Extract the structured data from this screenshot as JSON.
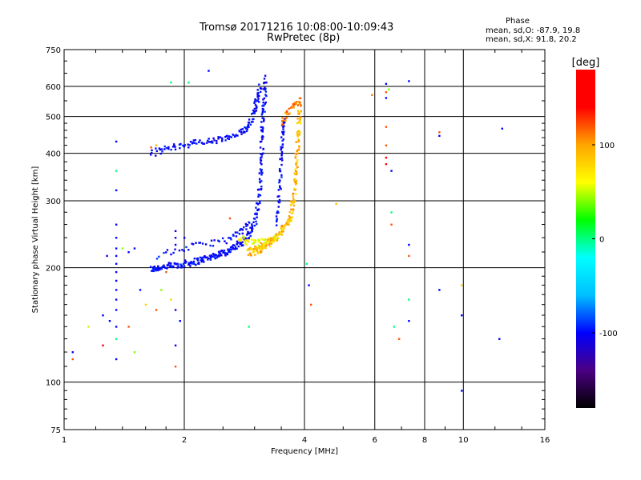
{
  "chart_data": {
    "type": "scatter",
    "title": "Tromsø 20171216 10:08:00-10:09:43",
    "subtitle": "RwPretec (8p)",
    "xlabel": "Frequency [MHz]",
    "ylabel": "Stationary phase Virtual Height [km]",
    "x_scale": "log",
    "y_scale": "log",
    "xlim": [
      1,
      16
    ],
    "ylim": [
      75,
      750
    ],
    "xticks": [
      1,
      2,
      4,
      6,
      8,
      10,
      16
    ],
    "yticks": [
      75,
      100,
      200,
      300,
      400,
      500,
      600,
      750
    ],
    "grid": true,
    "phase_info": {
      "heading": "Phase",
      "line_o": "mean, sd,O: -87.9, 19.8",
      "line_x": "mean, sd,X:  91.8, 20.2"
    },
    "colorbar": {
      "label": "[deg]",
      "range": [
        -180,
        180
      ],
      "ticks": [
        100,
        0,
        -100
      ],
      "tick_labels": [
        "100",
        "0",
        "-100"
      ],
      "colors": [
        "#000000",
        "#4b0082",
        "#0000ff",
        "#00bfff",
        "#00ffff",
        "#00ff00",
        "#ffff00",
        "#ffa500",
        "#ff0000",
        "#ff0000"
      ]
    },
    "o_trace_lower": [
      {
        "f": 1.65,
        "h": 198,
        "p": -100
      },
      {
        "f": 1.7,
        "h": 200,
        "p": -100
      },
      {
        "f": 1.8,
        "h": 202,
        "p": -100
      },
      {
        "f": 1.9,
        "h": 203,
        "p": -100
      },
      {
        "f": 2.0,
        "h": 205,
        "p": -100
      },
      {
        "f": 2.1,
        "h": 207,
        "p": -100
      },
      {
        "f": 2.2,
        "h": 210,
        "p": -100
      },
      {
        "f": 2.3,
        "h": 213,
        "p": -100
      },
      {
        "f": 2.4,
        "h": 216,
        "p": -100
      },
      {
        "f": 2.5,
        "h": 219,
        "p": -100
      },
      {
        "f": 2.6,
        "h": 223,
        "p": -100
      },
      {
        "f": 2.7,
        "h": 228,
        "p": -100
      },
      {
        "f": 2.8,
        "h": 235,
        "p": -100
      },
      {
        "f": 2.9,
        "h": 245,
        "p": -100
      },
      {
        "f": 3.0,
        "h": 262,
        "p": -100
      },
      {
        "f": 3.05,
        "h": 290,
        "p": -100
      },
      {
        "f": 3.1,
        "h": 330,
        "p": -100
      },
      {
        "f": 3.12,
        "h": 380,
        "p": -100
      },
      {
        "f": 3.13,
        "h": 440,
        "p": -100
      },
      {
        "f": 3.15,
        "h": 500,
        "p": -100
      },
      {
        "f": 3.18,
        "h": 560,
        "p": -100
      },
      {
        "f": 3.2,
        "h": 640,
        "p": -100
      }
    ],
    "o_trace_upper": [
      {
        "f": 1.65,
        "h": 400,
        "p": -100
      },
      {
        "f": 1.8,
        "h": 412,
        "p": -100
      },
      {
        "f": 2.0,
        "h": 422,
        "p": -100
      },
      {
        "f": 2.2,
        "h": 428,
        "p": -100
      },
      {
        "f": 2.4,
        "h": 433,
        "p": -100
      },
      {
        "f": 2.6,
        "h": 440,
        "p": -100
      },
      {
        "f": 2.8,
        "h": 455,
        "p": -100
      },
      {
        "f": 2.9,
        "h": 475,
        "p": -100
      },
      {
        "f": 3.0,
        "h": 520,
        "p": -100
      },
      {
        "f": 3.05,
        "h": 560,
        "p": -100
      },
      {
        "f": 3.1,
        "h": 600,
        "p": -100
      }
    ],
    "o_trace_mid": [
      {
        "f": 1.7,
        "h": 215,
        "p": -100
      },
      {
        "f": 2.0,
        "h": 225,
        "p": -100
      },
      {
        "f": 2.3,
        "h": 232,
        "p": -100
      },
      {
        "f": 2.6,
        "h": 238,
        "p": -100
      },
      {
        "f": 2.8,
        "h": 250,
        "p": -100
      },
      {
        "f": 2.9,
        "h": 262,
        "p": -100
      }
    ],
    "o_branch2": [
      {
        "f": 3.4,
        "h": 260,
        "p": -100
      },
      {
        "f": 3.45,
        "h": 300,
        "p": -100
      },
      {
        "f": 3.48,
        "h": 350,
        "p": -100
      },
      {
        "f": 3.5,
        "h": 400,
        "p": -100
      },
      {
        "f": 3.52,
        "h": 450,
        "p": -100
      },
      {
        "f": 3.55,
        "h": 490,
        "p": -100
      }
    ],
    "x_trace": [
      {
        "f": 2.9,
        "h": 220,
        "p": 90
      },
      {
        "f": 3.0,
        "h": 222,
        "p": 90
      },
      {
        "f": 3.1,
        "h": 225,
        "p": 90
      },
      {
        "f": 3.2,
        "h": 230,
        "p": 90
      },
      {
        "f": 3.3,
        "h": 236,
        "p": 90
      },
      {
        "f": 3.4,
        "h": 242,
        "p": 90
      },
      {
        "f": 3.5,
        "h": 250,
        "p": 90
      },
      {
        "f": 3.6,
        "h": 260,
        "p": 90
      },
      {
        "f": 3.7,
        "h": 275,
        "p": 90
      },
      {
        "f": 3.75,
        "h": 300,
        "p": 90
      },
      {
        "f": 3.8,
        "h": 340,
        "p": 90
      },
      {
        "f": 3.82,
        "h": 380,
        "p": 90
      },
      {
        "f": 3.85,
        "h": 430,
        "p": 90
      },
      {
        "f": 3.87,
        "h": 490,
        "p": 90
      },
      {
        "f": 3.9,
        "h": 540,
        "p": 90
      }
    ],
    "x_upper": [
      {
        "f": 3.5,
        "h": 480,
        "p": 110
      },
      {
        "f": 3.6,
        "h": 500,
        "p": 110
      },
      {
        "f": 3.7,
        "h": 520,
        "p": 110
      },
      {
        "f": 3.8,
        "h": 540,
        "p": 110
      },
      {
        "f": 3.9,
        "h": 560,
        "p": 110
      }
    ],
    "x_lower": [
      {
        "f": 2.75,
        "h": 240,
        "p": 60
      },
      {
        "f": 2.85,
        "h": 235,
        "p": 60
      },
      {
        "f": 3.0,
        "h": 232,
        "p": 60
      },
      {
        "f": 3.2,
        "h": 235,
        "p": 60
      },
      {
        "f": 3.4,
        "h": 240,
        "p": 60
      }
    ],
    "scatter_points": [
      {
        "f": 1.05,
        "h": 120,
        "p": -100
      },
      {
        "f": 1.05,
        "h": 115,
        "p": 120
      },
      {
        "f": 1.15,
        "h": 140,
        "p": 50
      },
      {
        "f": 1.25,
        "h": 150,
        "p": -100
      },
      {
        "f": 1.25,
        "h": 125,
        "p": 140
      },
      {
        "f": 1.3,
        "h": 145,
        "p": -100
      },
      {
        "f": 1.35,
        "h": 430,
        "p": -100
      },
      {
        "f": 1.35,
        "h": 360,
        "p": 0
      },
      {
        "f": 1.35,
        "h": 320,
        "p": -100
      },
      {
        "f": 1.35,
        "h": 260,
        "p": -100
      },
      {
        "f": 1.35,
        "h": 240,
        "p": -100
      },
      {
        "f": 1.35,
        "h": 225,
        "p": -100
      },
      {
        "f": 1.35,
        "h": 215,
        "p": -100
      },
      {
        "f": 1.35,
        "h": 205,
        "p": -100
      },
      {
        "f": 1.35,
        "h": 195,
        "p": -100
      },
      {
        "f": 1.35,
        "h": 185,
        "p": -100
      },
      {
        "f": 1.35,
        "h": 175,
        "p": -100
      },
      {
        "f": 1.35,
        "h": 165,
        "p": -100
      },
      {
        "f": 1.35,
        "h": 155,
        "p": -100
      },
      {
        "f": 1.35,
        "h": 140,
        "p": -100
      },
      {
        "f": 1.35,
        "h": 130,
        "p": 0
      },
      {
        "f": 1.35,
        "h": 115,
        "p": -100
      },
      {
        "f": 1.28,
        "h": 215,
        "p": -100
      },
      {
        "f": 1.45,
        "h": 220,
        "p": -100
      },
      {
        "f": 1.5,
        "h": 225,
        "p": -100
      },
      {
        "f": 1.4,
        "h": 225,
        "p": 40
      },
      {
        "f": 1.45,
        "h": 140,
        "p": 120
      },
      {
        "f": 1.5,
        "h": 120,
        "p": 40
      },
      {
        "f": 1.55,
        "h": 175,
        "p": -100
      },
      {
        "f": 1.6,
        "h": 160,
        "p": 80
      },
      {
        "f": 1.65,
        "h": 415,
        "p": 120
      },
      {
        "f": 1.7,
        "h": 420,
        "p": 90
      },
      {
        "f": 1.7,
        "h": 155,
        "p": 120
      },
      {
        "f": 1.75,
        "h": 175,
        "p": 40
      },
      {
        "f": 1.8,
        "h": 195,
        "p": 120
      },
      {
        "f": 1.85,
        "h": 165,
        "p": 80
      },
      {
        "f": 1.9,
        "h": 250,
        "p": -100
      },
      {
        "f": 1.9,
        "h": 240,
        "p": -100
      },
      {
        "f": 1.9,
        "h": 230,
        "p": -100
      },
      {
        "f": 1.9,
        "h": 155,
        "p": -100
      },
      {
        "f": 1.9,
        "h": 125,
        "p": -100
      },
      {
        "f": 1.9,
        "h": 110,
        "p": 120
      },
      {
        "f": 1.95,
        "h": 145,
        "p": -100
      },
      {
        "f": 2.0,
        "h": 240,
        "p": -100
      },
      {
        "f": 1.85,
        "h": 615,
        "p": 0
      },
      {
        "f": 2.05,
        "h": 615,
        "p": 0
      },
      {
        "f": 2.3,
        "h": 660,
        "p": -100
      },
      {
        "f": 2.6,
        "h": 270,
        "p": 120
      },
      {
        "f": 2.9,
        "h": 140,
        "p": 0
      },
      {
        "f": 4.05,
        "h": 205,
        "p": 0
      },
      {
        "f": 4.1,
        "h": 180,
        "p": -100
      },
      {
        "f": 4.15,
        "h": 160,
        "p": 120
      },
      {
        "f": 4.8,
        "h": 295,
        "p": 90
      },
      {
        "f": 5.9,
        "h": 570,
        "p": 110
      },
      {
        "f": 6.4,
        "h": 610,
        "p": -100
      },
      {
        "f": 6.4,
        "h": 580,
        "p": 120
      },
      {
        "f": 6.4,
        "h": 560,
        "p": -100
      },
      {
        "f": 6.4,
        "h": 470,
        "p": 120
      },
      {
        "f": 6.4,
        "h": 420,
        "p": 120
      },
      {
        "f": 6.4,
        "h": 390,
        "p": 140
      },
      {
        "f": 6.4,
        "h": 375,
        "p": 140
      },
      {
        "f": 6.5,
        "h": 590,
        "p": 40
      },
      {
        "f": 6.6,
        "h": 360,
        "p": -100
      },
      {
        "f": 6.6,
        "h": 280,
        "p": 0
      },
      {
        "f": 6.6,
        "h": 260,
        "p": 120
      },
      {
        "f": 6.7,
        "h": 140,
        "p": 0
      },
      {
        "f": 6.9,
        "h": 130,
        "p": 120
      },
      {
        "f": 7.3,
        "h": 620,
        "p": -100
      },
      {
        "f": 7.3,
        "h": 230,
        "p": -100
      },
      {
        "f": 7.3,
        "h": 215,
        "p": 120
      },
      {
        "f": 7.3,
        "h": 165,
        "p": 0
      },
      {
        "f": 7.3,
        "h": 145,
        "p": -100
      },
      {
        "f": 8.7,
        "h": 455,
        "p": 120
      },
      {
        "f": 8.7,
        "h": 445,
        "p": -100
      },
      {
        "f": 8.7,
        "h": 175,
        "p": -100
      },
      {
        "f": 9.9,
        "h": 180,
        "p": 80
      },
      {
        "f": 9.9,
        "h": 150,
        "p": -100
      },
      {
        "f": 9.9,
        "h": 95,
        "p": -100
      },
      {
        "f": 12.5,
        "h": 465,
        "p": -100
      },
      {
        "f": 12.3,
        "h": 130,
        "p": -100
      }
    ]
  }
}
